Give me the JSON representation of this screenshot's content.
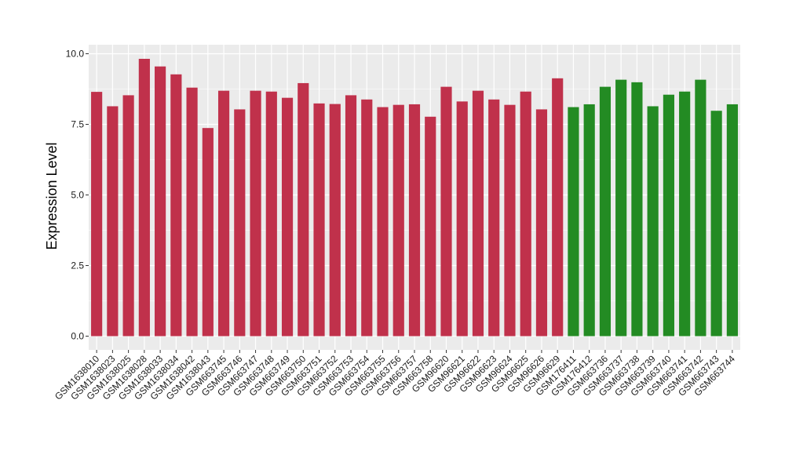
{
  "chart_data": {
    "type": "bar",
    "title": "",
    "xlabel": "",
    "ylabel": "Expression Level",
    "ylim": [
      0,
      10.4
    ],
    "yticks": [
      0.0,
      2.5,
      5.0,
      7.5,
      10.0
    ],
    "ytick_labels": [
      "0.0",
      "2.5",
      "5.0",
      "7.5",
      "10.0"
    ],
    "grid": true,
    "legend": "none",
    "panel_background": "#ebebeb",
    "grid_color": "#ffffff",
    "colors": {
      "group1": "#c0314b",
      "group2": "#238b23"
    },
    "categories": [
      "GSM1638010",
      "GSM1638023",
      "GSM1638025",
      "GSM1638028",
      "GSM1638033",
      "GSM1638034",
      "GSM1638042",
      "GSM1638043",
      "GSM663745",
      "GSM663746",
      "GSM663747",
      "GSM663748",
      "GSM663749",
      "GSM663750",
      "GSM663751",
      "GSM663752",
      "GSM663753",
      "GSM663754",
      "GSM663755",
      "GSM663756",
      "GSM663757",
      "GSM663758",
      "GSM96620",
      "GSM96621",
      "GSM96622",
      "GSM96623",
      "GSM96624",
      "GSM96625",
      "GSM96626",
      "GSM96629",
      "GSM176411",
      "GSM176412",
      "GSM663736",
      "GSM663737",
      "GSM663738",
      "GSM663739",
      "GSM663740",
      "GSM663741",
      "GSM663742",
      "GSM663743",
      "GSM663744"
    ],
    "values": [
      8.65,
      8.14,
      8.53,
      9.82,
      9.55,
      9.27,
      8.8,
      7.37,
      8.69,
      8.03,
      8.69,
      8.66,
      8.44,
      8.96,
      8.24,
      8.22,
      8.53,
      8.38,
      8.11,
      8.19,
      8.21,
      7.77,
      8.83,
      8.31,
      8.69,
      8.38,
      8.19,
      8.66,
      8.03,
      9.13,
      8.11,
      8.21,
      8.83,
      9.08,
      8.99,
      8.14,
      8.55,
      8.66,
      9.08,
      7.98,
      8.21
    ],
    "groups": [
      "group1",
      "group1",
      "group1",
      "group1",
      "group1",
      "group1",
      "group1",
      "group1",
      "group1",
      "group1",
      "group1",
      "group1",
      "group1",
      "group1",
      "group1",
      "group1",
      "group1",
      "group1",
      "group1",
      "group1",
      "group1",
      "group1",
      "group1",
      "group1",
      "group1",
      "group1",
      "group1",
      "group1",
      "group1",
      "group1",
      "group2",
      "group2",
      "group2",
      "group2",
      "group2",
      "group2",
      "group2",
      "group2",
      "group2",
      "group2",
      "group2"
    ]
  }
}
